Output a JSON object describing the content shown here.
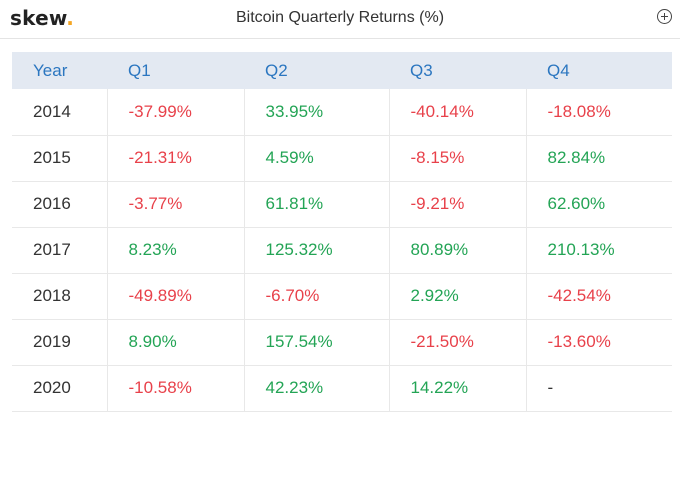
{
  "header": {
    "logo_text": "skew",
    "logo_dot": ".",
    "title": "Bitcoin Quarterly Returns (%)",
    "add_icon": "plus-circle-icon"
  },
  "table": {
    "columns": [
      "Year",
      "Q1",
      "Q2",
      "Q3",
      "Q4"
    ],
    "rows": [
      {
        "year": "2014",
        "q": [
          "-37.99%",
          "33.95%",
          "-40.14%",
          "-18.08%"
        ]
      },
      {
        "year": "2015",
        "q": [
          "-21.31%",
          "4.59%",
          "-8.15%",
          "82.84%"
        ]
      },
      {
        "year": "2016",
        "q": [
          "-3.77%",
          "61.81%",
          "-9.21%",
          "62.60%"
        ]
      },
      {
        "year": "2017",
        "q": [
          "8.23%",
          "125.32%",
          "80.89%",
          "210.13%"
        ]
      },
      {
        "year": "2018",
        "q": [
          "-49.89%",
          "-6.70%",
          "2.92%",
          "-42.54%"
        ]
      },
      {
        "year": "2019",
        "q": [
          "8.90%",
          "157.54%",
          "-21.50%",
          "-13.60%"
        ]
      },
      {
        "year": "2020",
        "q": [
          "-10.58%",
          "42.23%",
          "14.22%",
          "-"
        ]
      }
    ]
  },
  "colors": {
    "negative": "#e8414a",
    "positive": "#23a455",
    "header_text": "#2b76c0",
    "header_bg": "#e3e9f2",
    "logo_dot": "#f5a623"
  }
}
